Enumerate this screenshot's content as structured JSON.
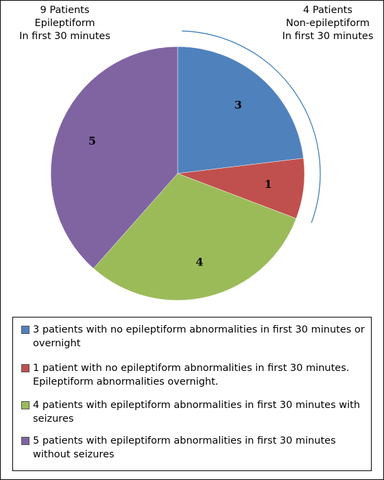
{
  "chart_data": {
    "type": "pie",
    "title": "",
    "slices": [
      {
        "label": "3",
        "value": 3,
        "color": "#4f81bd",
        "legend": "3 patients with no epileptiform abnormalities in first 30 minutes or overnight"
      },
      {
        "label": "1",
        "value": 1,
        "color": "#c0504d",
        "legend": "1 patient with no epileptiform abnormalities in first 30 minutes. Epileptiform abnormalities overnight."
      },
      {
        "label": "4",
        "value": 4,
        "color": "#9bbb59",
        "legend": "4 patients with epileptiform abnormalities in first 30 minutes with seizures"
      },
      {
        "label": "5",
        "value": 5,
        "color": "#8064a2",
        "legend": "5 patients with epileptiform abnormalities in first 30 minutes without seizures"
      }
    ],
    "annotations": [
      {
        "lines": [
          "9 Patients",
          "Epileptiform",
          "In first 30 minutes"
        ]
      },
      {
        "lines": [
          "4 Patients",
          "Non-epileptiform",
          "In first 30 minutes"
        ]
      }
    ],
    "bracket_color": "#2e75b6",
    "legend_position": "bottom"
  }
}
